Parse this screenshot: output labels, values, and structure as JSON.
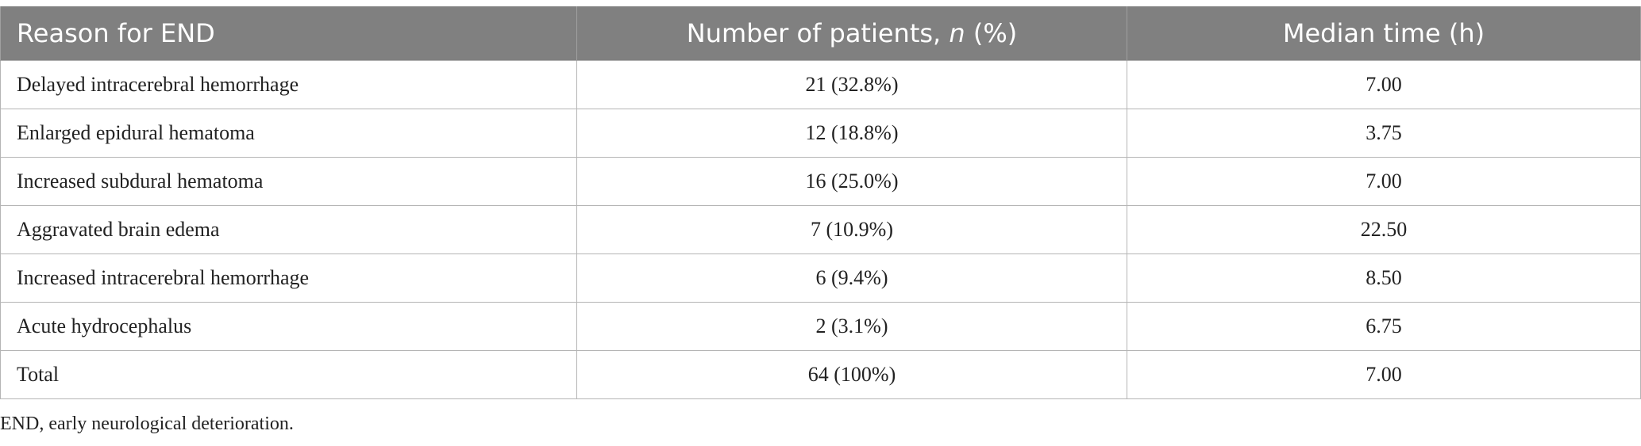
{
  "table": {
    "headers": {
      "reason": "Reason for END",
      "patients_prefix": "Number of patients, ",
      "patients_italic": "n",
      "patients_suffix": " (%)",
      "median": "Median time (h)"
    },
    "rows": [
      {
        "reason": "Delayed intracerebral hemorrhage",
        "patients": "21 (32.8%)",
        "median": "7.00"
      },
      {
        "reason": "Enlarged epidural hematoma",
        "patients": "12 (18.8%)",
        "median": "3.75"
      },
      {
        "reason": "Increased subdural hematoma",
        "patients": "16 (25.0%)",
        "median": "7.00"
      },
      {
        "reason": "Aggravated brain edema",
        "patients": "7 (10.9%)",
        "median": "22.50"
      },
      {
        "reason": "Increased intracerebral hemorrhage",
        "patients": "6 (9.4%)",
        "median": "8.50"
      },
      {
        "reason": "Acute hydrocephalus",
        "patients": "2 (3.1%)",
        "median": "6.75"
      },
      {
        "reason": "Total",
        "patients": "64 (100%)",
        "median": "7.00"
      }
    ]
  },
  "footnote": "END, early neurological deterioration.",
  "colors": {
    "header_bg": "#808080",
    "header_text": "#ffffff",
    "border": "#b5b5b5"
  }
}
